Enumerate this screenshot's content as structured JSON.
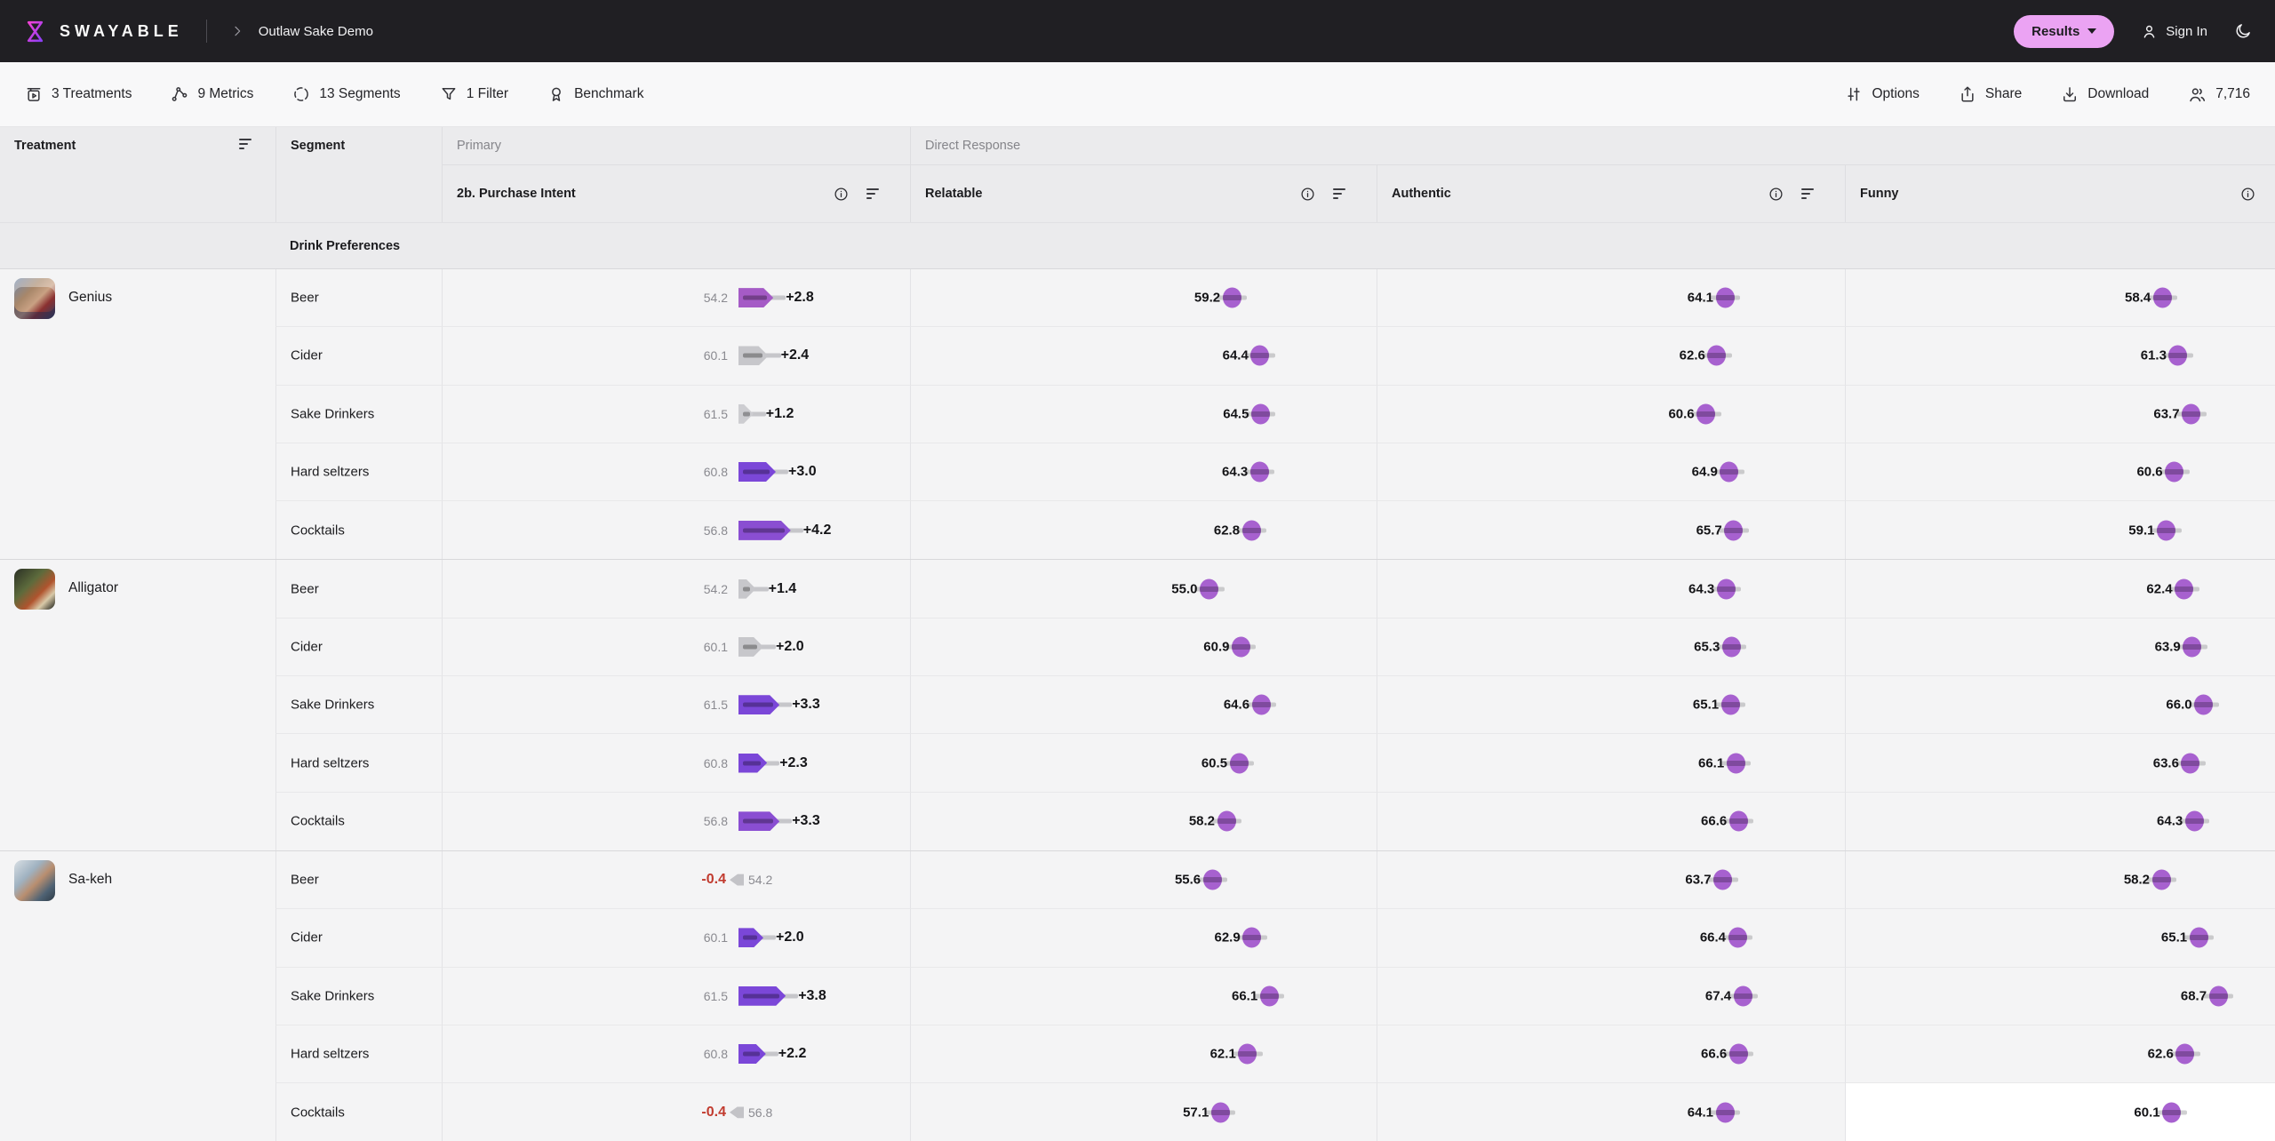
{
  "topbar": {
    "brand": "SWAYABLE",
    "title": "Outlaw Sake Demo",
    "results_label": "Results",
    "sign_in_label": "Sign In"
  },
  "toolbar": {
    "left": [
      {
        "icon": "treatments-icon",
        "label": "3 Treatments"
      },
      {
        "icon": "metrics-icon",
        "label": "9 Metrics"
      },
      {
        "icon": "segments-icon",
        "label": "13 Segments"
      },
      {
        "icon": "filter-icon",
        "label": "1 Filter"
      },
      {
        "icon": "benchmark-icon",
        "label": "Benchmark"
      }
    ],
    "right": [
      {
        "icon": "options-icon",
        "label": "Options"
      },
      {
        "icon": "share-icon",
        "label": "Share"
      },
      {
        "icon": "download-icon",
        "label": "Download"
      },
      {
        "icon": "respondents-icon",
        "label": "7,716"
      }
    ]
  },
  "table": {
    "columns": {
      "treatment": "Treatment",
      "segment": "Segment"
    },
    "groups": [
      {
        "label": "Primary",
        "metrics": [
          "2b. Purchase Intent"
        ]
      },
      {
        "label": "Direct Response",
        "metrics": [
          "Relatable",
          "Authentic",
          "Funny"
        ]
      }
    ],
    "section": "Drink Preferences",
    "treatments": [
      {
        "name": "Genius",
        "thumb": "genius",
        "rows": [
          {
            "segment": "Beer",
            "pi": {
              "base": 54.2,
              "delta": 2.8,
              "color": "#a55bc6"
            },
            "relatable": 59.2,
            "authentic": 64.1,
            "funny": 58.4
          },
          {
            "segment": "Cider",
            "pi": {
              "base": 60.1,
              "delta": 2.4,
              "color": "#c7c7cb"
            },
            "relatable": 64.4,
            "authentic": 62.6,
            "funny": 61.3
          },
          {
            "segment": "Sake Drinkers",
            "pi": {
              "base": 61.5,
              "delta": 1.2,
              "color": "#cdcdd1"
            },
            "relatable": 64.5,
            "authentic": 60.6,
            "funny": 63.7
          },
          {
            "segment": "Hard seltzers",
            "pi": {
              "base": 60.8,
              "delta": 3.0,
              "color": "#7b47d8"
            },
            "relatable": 64.3,
            "authentic": 64.9,
            "funny": 60.6
          },
          {
            "segment": "Cocktails",
            "pi": {
              "base": 56.8,
              "delta": 4.2,
              "color": "#8a4ed2"
            },
            "relatable": 62.8,
            "authentic": 65.7,
            "funny": 59.1
          }
        ]
      },
      {
        "name": "Alligator",
        "thumb": "alligator",
        "rows": [
          {
            "segment": "Beer",
            "pi": {
              "base": 54.2,
              "delta": 1.4,
              "color": "#c7c7cb"
            },
            "relatable": 55.0,
            "authentic": 64.3,
            "funny": 62.4
          },
          {
            "segment": "Cider",
            "pi": {
              "base": 60.1,
              "delta": 2.0,
              "color": "#c7c7cb"
            },
            "relatable": 60.9,
            "authentic": 65.3,
            "funny": 63.9
          },
          {
            "segment": "Sake Drinkers",
            "pi": {
              "base": 61.5,
              "delta": 3.3,
              "color": "#7b47d8"
            },
            "relatable": 64.6,
            "authentic": 65.1,
            "funny": 66.0
          },
          {
            "segment": "Hard seltzers",
            "pi": {
              "base": 60.8,
              "delta": 2.3,
              "color": "#7b47d8"
            },
            "relatable": 60.5,
            "authentic": 66.1,
            "funny": 63.6
          },
          {
            "segment": "Cocktails",
            "pi": {
              "base": 56.8,
              "delta": 3.3,
              "color": "#8a4ed2"
            },
            "relatable": 58.2,
            "authentic": 66.6,
            "funny": 64.3
          }
        ]
      },
      {
        "name": "Sa-keh",
        "thumb": "sakeh",
        "rows": [
          {
            "segment": "Beer",
            "pi": {
              "base": 54.2,
              "delta": -0.4
            },
            "relatable": 55.6,
            "authentic": 63.7,
            "funny": 58.2
          },
          {
            "segment": "Cider",
            "pi": {
              "base": 60.1,
              "delta": 2.0,
              "color": "#7b47d8"
            },
            "relatable": 62.9,
            "authentic": 66.4,
            "funny": 65.1
          },
          {
            "segment": "Sake Drinkers",
            "pi": {
              "base": 61.5,
              "delta": 3.8,
              "color": "#7b47d8"
            },
            "relatable": 66.1,
            "authentic": 67.4,
            "funny": 68.7
          },
          {
            "segment": "Hard seltzers",
            "pi": {
              "base": 60.8,
              "delta": 2.2,
              "color": "#7b47d8"
            },
            "relatable": 62.1,
            "authentic": 66.6,
            "funny": 62.6
          },
          {
            "segment": "Cocktails",
            "pi": {
              "base": 56.8,
              "delta": -0.4
            },
            "relatable": 57.1,
            "authentic": 64.1,
            "funny": 60.1,
            "highlight_funny": true
          }
        ]
      }
    ]
  },
  "colors": {
    "dot": "#a761cf",
    "bar_strong": "#7b47d8",
    "bar_medium": "#8a4ed2",
    "bar_orchid": "#a55bc6",
    "bar_gray": "#c7c7cb",
    "negative_text": "#c13a2e",
    "results_pill": "#eba3f3",
    "topbar_bg": "#201f23"
  }
}
